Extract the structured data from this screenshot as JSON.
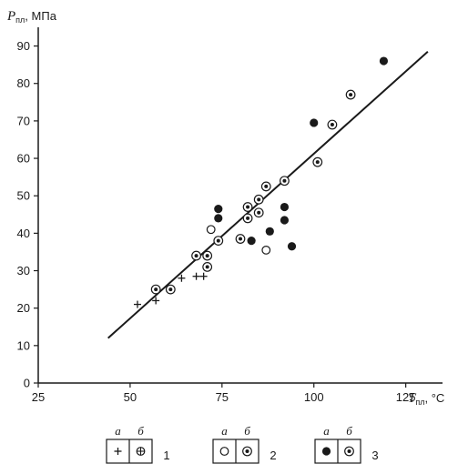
{
  "chart_data": {
    "type": "scatter",
    "title": "",
    "ylabel": {
      "symbol": "P",
      "subscript": "пл",
      "unit": ", МПа"
    },
    "xlabel": {
      "symbol": "T",
      "subscript": "пл",
      "unit": ", °C"
    },
    "xlim": [
      25,
      135
    ],
    "ylim": [
      0,
      95
    ],
    "xticks": [
      25,
      50,
      75,
      100,
      125
    ],
    "yticks": [
      0,
      10,
      20,
      30,
      40,
      50,
      60,
      70,
      80,
      90
    ],
    "xtick_labels": [
      "25",
      "50",
      "75",
      "100",
      "125"
    ],
    "ytick_labels": [
      "0",
      "10",
      "20",
      "30",
      "40",
      "50",
      "60",
      "70",
      "80",
      "90"
    ],
    "grid": false,
    "colors": {
      "ink": "#1a1a1a",
      "background": "#ffffff"
    },
    "series": [
      {
        "marker": "plus",
        "points": [
          [
            52,
            21
          ],
          [
            57,
            22
          ],
          [
            64,
            28
          ],
          [
            68,
            28.5
          ],
          [
            70,
            28.5
          ]
        ]
      },
      {
        "marker": "circle-plus",
        "points": [
          [
            61,
            25
          ]
        ]
      },
      {
        "marker": "circle-open",
        "points": [
          [
            72,
            41
          ],
          [
            87,
            35.5
          ]
        ]
      },
      {
        "marker": "circle-dot",
        "points": [
          [
            57,
            25
          ],
          [
            61,
            25
          ],
          [
            68,
            34
          ],
          [
            71,
            34
          ],
          [
            71,
            31
          ],
          [
            74,
            38
          ],
          [
            80,
            38.5
          ],
          [
            82,
            47
          ],
          [
            82,
            44
          ],
          [
            85,
            49
          ],
          [
            85,
            45.5
          ],
          [
            87,
            52.5
          ],
          [
            92,
            54
          ],
          [
            101,
            59
          ],
          [
            105,
            69
          ],
          [
            110,
            77
          ]
        ]
      },
      {
        "marker": "filled",
        "points": [
          [
            74,
            46.5
          ],
          [
            74,
            44
          ],
          [
            83,
            38
          ],
          [
            88,
            40.5
          ],
          [
            92,
            47
          ],
          [
            92,
            43.5
          ],
          [
            94,
            36.5
          ],
          [
            100,
            69.5
          ],
          [
            119,
            86
          ]
        ]
      }
    ],
    "trend_line": {
      "x": [
        44,
        131
      ],
      "y": [
        12,
        88.5
      ]
    },
    "legend": {
      "position": "bottom",
      "sub_a": "а",
      "sub_b": "б",
      "groups": [
        {
          "number": "1",
          "a": "plus",
          "b": "circle-plus"
        },
        {
          "number": "2",
          "a": "circle-open",
          "b": "circle-dot"
        },
        {
          "number": "3",
          "a": "filled",
          "b": "circle-dot"
        }
      ]
    }
  }
}
